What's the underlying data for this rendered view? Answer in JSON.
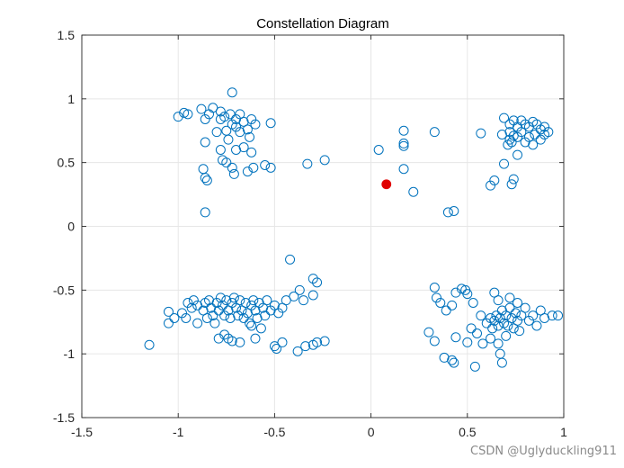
{
  "chart_data": {
    "type": "scatter",
    "title": "Constellation Diagram",
    "xlabel": "",
    "ylabel": "",
    "xlim": [
      -1.5,
      1.0
    ],
    "ylim": [
      -1.5,
      1.5
    ],
    "x_ticks": [
      -1.5,
      -1,
      -0.5,
      0,
      0.5,
      1
    ],
    "y_ticks": [
      -1.5,
      -1,
      -0.5,
      0,
      0.5,
      1,
      1.5
    ],
    "x_tick_labels": [
      "-1.5",
      "-1",
      "-0.5",
      "0",
      "0.5",
      "1"
    ],
    "y_tick_labels": [
      "-1.5",
      "-1",
      "-0.5",
      "0",
      "0.5",
      "1",
      "1.5"
    ],
    "grid": true,
    "series": [
      {
        "marker": "open-circle",
        "color": "#0072BD",
        "points": [
          [
            -0.72,
            1.05
          ],
          [
            -0.88,
            0.92
          ],
          [
            -0.82,
            0.93
          ],
          [
            -0.78,
            0.9
          ],
          [
            -0.76,
            0.86
          ],
          [
            -0.73,
            0.88
          ],
          [
            -0.7,
            0.84
          ],
          [
            -0.68,
            0.88
          ],
          [
            -0.66,
            0.82
          ],
          [
            -0.62,
            0.84
          ],
          [
            -0.6,
            0.8
          ],
          [
            -0.64,
            0.76
          ],
          [
            -0.7,
            0.78
          ],
          [
            -0.75,
            0.75
          ],
          [
            -0.8,
            0.74
          ],
          [
            -0.84,
            0.88
          ],
          [
            -0.86,
            0.84
          ],
          [
            -0.78,
            0.84
          ],
          [
            -0.72,
            0.8
          ],
          [
            -0.68,
            0.74
          ],
          [
            -0.63,
            0.7
          ],
          [
            -0.74,
            0.68
          ],
          [
            -0.78,
            0.6
          ],
          [
            -0.7,
            0.6
          ],
          [
            -0.66,
            0.62
          ],
          [
            -0.62,
            0.58
          ],
          [
            -0.86,
            0.66
          ],
          [
            -0.52,
            0.81
          ],
          [
            -1.0,
            0.86
          ],
          [
            -0.97,
            0.89
          ],
          [
            -0.95,
            0.88
          ],
          [
            -0.77,
            0.52
          ],
          [
            -0.75,
            0.5
          ],
          [
            -0.72,
            0.46
          ],
          [
            -0.71,
            0.41
          ],
          [
            -0.64,
            0.43
          ],
          [
            -0.61,
            0.46
          ],
          [
            -0.55,
            0.48
          ],
          [
            -0.52,
            0.46
          ],
          [
            -0.87,
            0.45
          ],
          [
            -0.86,
            0.38
          ],
          [
            -0.85,
            0.36
          ],
          [
            -0.86,
            0.11
          ],
          [
            -0.33,
            0.49
          ],
          [
            -0.24,
            0.52
          ],
          [
            0.04,
            0.6
          ],
          [
            0.17,
            0.75
          ],
          [
            0.17,
            0.65
          ],
          [
            0.17,
            0.63
          ],
          [
            0.33,
            0.74
          ],
          [
            0.17,
            0.45
          ],
          [
            0.22,
            0.27
          ],
          [
            0.4,
            0.11
          ],
          [
            0.43,
            0.12
          ],
          [
            0.57,
            0.73
          ],
          [
            0.69,
            0.85
          ],
          [
            0.72,
            0.8
          ],
          [
            0.74,
            0.83
          ],
          [
            0.76,
            0.78
          ],
          [
            0.78,
            0.83
          ],
          [
            0.8,
            0.8
          ],
          [
            0.82,
            0.78
          ],
          [
            0.84,
            0.82
          ],
          [
            0.86,
            0.8
          ],
          [
            0.88,
            0.76
          ],
          [
            0.9,
            0.78
          ],
          [
            0.92,
            0.74
          ],
          [
            0.85,
            0.72
          ],
          [
            0.82,
            0.7
          ],
          [
            0.78,
            0.74
          ],
          [
            0.74,
            0.71
          ],
          [
            0.72,
            0.68
          ],
          [
            0.71,
            0.64
          ],
          [
            0.73,
            0.66
          ],
          [
            0.76,
            0.7
          ],
          [
            0.8,
            0.66
          ],
          [
            0.84,
            0.64
          ],
          [
            0.88,
            0.68
          ],
          [
            0.9,
            0.72
          ],
          [
            0.68,
            0.72
          ],
          [
            0.72,
            0.74
          ],
          [
            0.76,
            0.56
          ],
          [
            0.69,
            0.49
          ],
          [
            0.74,
            0.37
          ],
          [
            0.73,
            0.33
          ],
          [
            0.64,
            0.36
          ],
          [
            0.62,
            0.32
          ],
          [
            -1.15,
            -0.93
          ],
          [
            -1.05,
            -0.76
          ],
          [
            -1.05,
            -0.67
          ],
          [
            -1.02,
            -0.72
          ],
          [
            -0.98,
            -0.68
          ],
          [
            -0.96,
            -0.72
          ],
          [
            -0.95,
            -0.6
          ],
          [
            -0.93,
            -0.64
          ],
          [
            -0.92,
            -0.58
          ],
          [
            -0.9,
            -0.62
          ],
          [
            -0.9,
            -0.76
          ],
          [
            -0.87,
            -0.66
          ],
          [
            -0.86,
            -0.6
          ],
          [
            -0.85,
            -0.72
          ],
          [
            -0.84,
            -0.58
          ],
          [
            -0.83,
            -0.64
          ],
          [
            -0.82,
            -0.7
          ],
          [
            -0.81,
            -0.76
          ],
          [
            -0.8,
            -0.6
          ],
          [
            -0.79,
            -0.66
          ],
          [
            -0.78,
            -0.56
          ],
          [
            -0.77,
            -0.62
          ],
          [
            -0.76,
            -0.7
          ],
          [
            -0.75,
            -0.58
          ],
          [
            -0.74,
            -0.66
          ],
          [
            -0.73,
            -0.72
          ],
          [
            -0.72,
            -0.6
          ],
          [
            -0.71,
            -0.56
          ],
          [
            -0.7,
            -0.64
          ],
          [
            -0.69,
            -0.7
          ],
          [
            -0.68,
            -0.58
          ],
          [
            -0.67,
            -0.66
          ],
          [
            -0.66,
            -0.72
          ],
          [
            -0.65,
            -0.6
          ],
          [
            -0.64,
            -0.68
          ],
          [
            -0.63,
            -0.76
          ],
          [
            -0.62,
            -0.62
          ],
          [
            -0.61,
            -0.58
          ],
          [
            -0.6,
            -0.66
          ],
          [
            -0.59,
            -0.72
          ],
          [
            -0.58,
            -0.6
          ],
          [
            -0.56,
            -0.64
          ],
          [
            -0.55,
            -0.7
          ],
          [
            -0.54,
            -0.58
          ],
          [
            -0.52,
            -0.66
          ],
          [
            -0.5,
            -0.62
          ],
          [
            -0.48,
            -0.68
          ],
          [
            -0.46,
            -0.64
          ],
          [
            -0.44,
            -0.58
          ],
          [
            -0.42,
            -0.26
          ],
          [
            -0.4,
            -0.55
          ],
          [
            -0.37,
            -0.5
          ],
          [
            -0.35,
            -0.58
          ],
          [
            -0.3,
            -0.54
          ],
          [
            -0.3,
            -0.41
          ],
          [
            -0.28,
            -0.44
          ],
          [
            -0.76,
            -0.85
          ],
          [
            -0.74,
            -0.88
          ],
          [
            -0.72,
            -0.9
          ],
          [
            -0.79,
            -0.88
          ],
          [
            -0.68,
            -0.91
          ],
          [
            -0.6,
            -0.88
          ],
          [
            -0.5,
            -0.94
          ],
          [
            -0.49,
            -0.96
          ],
          [
            -0.46,
            -0.91
          ],
          [
            -0.38,
            -0.98
          ],
          [
            -0.34,
            -0.94
          ],
          [
            -0.3,
            -0.93
          ],
          [
            -0.28,
            -0.91
          ],
          [
            -0.24,
            -0.9
          ],
          [
            -0.62,
            -0.78
          ],
          [
            -0.57,
            -0.8
          ],
          [
            0.33,
            -0.48
          ],
          [
            0.34,
            -0.56
          ],
          [
            0.36,
            -0.6
          ],
          [
            0.39,
            -0.66
          ],
          [
            0.42,
            -0.62
          ],
          [
            0.44,
            -0.52
          ],
          [
            0.47,
            -0.49
          ],
          [
            0.49,
            -0.5
          ],
          [
            0.5,
            -0.53
          ],
          [
            0.53,
            -0.6
          ],
          [
            0.57,
            -0.7
          ],
          [
            0.6,
            -0.76
          ],
          [
            0.62,
            -0.72
          ],
          [
            0.63,
            -0.8
          ],
          [
            0.64,
            -0.74
          ],
          [
            0.65,
            -0.7
          ],
          [
            0.66,
            -0.78
          ],
          [
            0.67,
            -0.72
          ],
          [
            0.68,
            -0.66
          ],
          [
            0.69,
            -0.76
          ],
          [
            0.7,
            -0.7
          ],
          [
            0.71,
            -0.78
          ],
          [
            0.72,
            -0.64
          ],
          [
            0.73,
            -0.72
          ],
          [
            0.74,
            -0.8
          ],
          [
            0.75,
            -0.68
          ],
          [
            0.76,
            -0.74
          ],
          [
            0.77,
            -0.82
          ],
          [
            0.78,
            -0.7
          ],
          [
            0.8,
            -0.64
          ],
          [
            0.82,
            -0.74
          ],
          [
            0.84,
            -0.7
          ],
          [
            0.86,
            -0.78
          ],
          [
            0.88,
            -0.66
          ],
          [
            0.9,
            -0.72
          ],
          [
            0.94,
            -0.7
          ],
          [
            0.97,
            -0.7
          ],
          [
            0.64,
            -0.52
          ],
          [
            0.66,
            -0.58
          ],
          [
            0.72,
            -0.56
          ],
          [
            0.76,
            -0.6
          ],
          [
            0.3,
            -0.83
          ],
          [
            0.33,
            -0.9
          ],
          [
            0.38,
            -1.03
          ],
          [
            0.42,
            -1.05
          ],
          [
            0.43,
            -1.07
          ],
          [
            0.44,
            -0.87
          ],
          [
            0.5,
            -0.91
          ],
          [
            0.52,
            -0.8
          ],
          [
            0.55,
            -0.84
          ],
          [
            0.54,
            -1.1
          ],
          [
            0.62,
            -0.88
          ],
          [
            0.66,
            -0.92
          ],
          [
            0.67,
            -1.0
          ],
          [
            0.68,
            -1.07
          ],
          [
            0.7,
            -0.86
          ],
          [
            0.58,
            -0.92
          ]
        ]
      },
      {
        "marker": "filled-circle",
        "color": "#E00000",
        "points": [
          [
            0.08,
            0.33
          ]
        ]
      }
    ]
  },
  "watermark": "CSDN @Uglyduckling911"
}
